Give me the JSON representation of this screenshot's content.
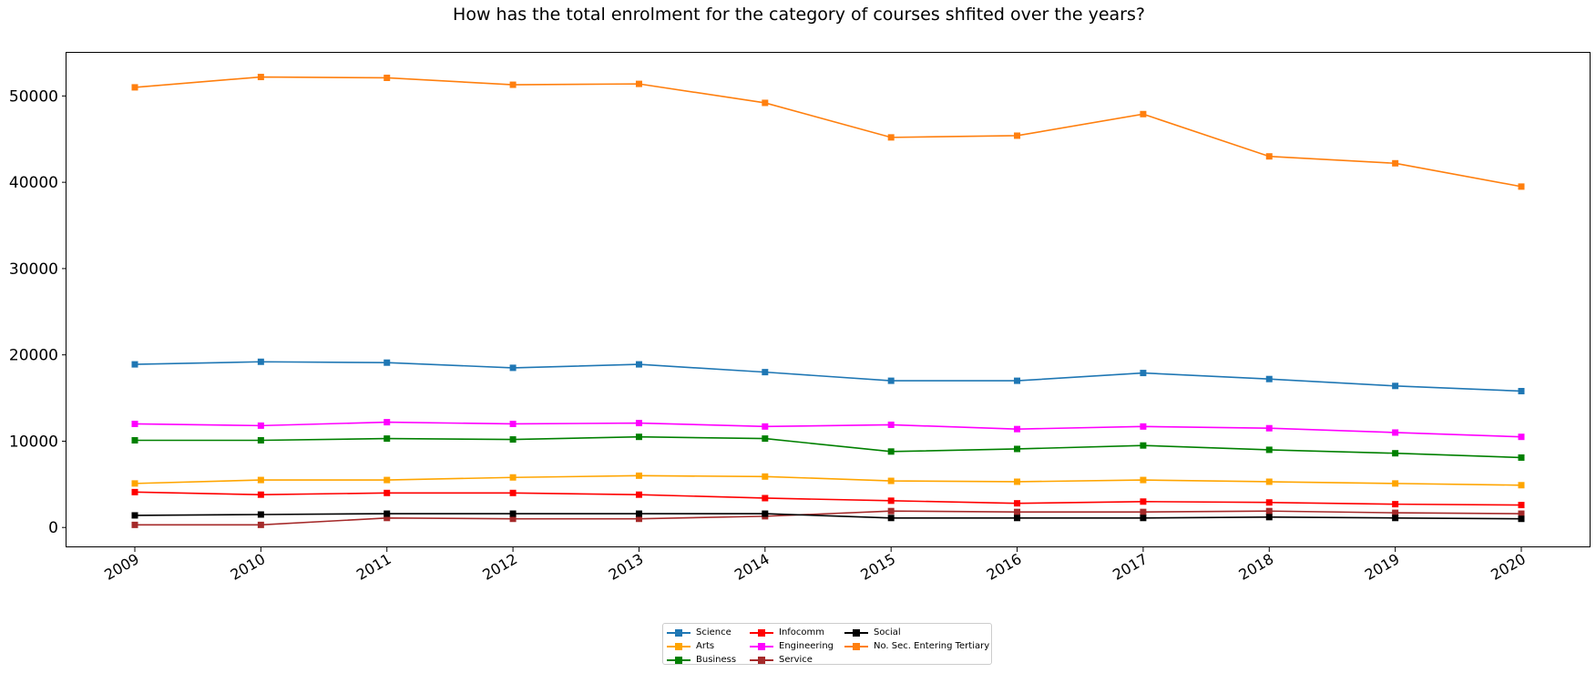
{
  "chart_data": {
    "type": "line",
    "title": "How has the total enrolment for the category of courses shfited over the years?",
    "xlabel": "",
    "ylabel": "",
    "x": [
      "2009",
      "2010",
      "2011",
      "2012",
      "2013",
      "2014",
      "2015",
      "2016",
      "2017",
      "2018",
      "2019",
      "2020"
    ],
    "ylim": [
      -2300,
      55000
    ],
    "yticks": [
      "0",
      "10000",
      "20000",
      "30000",
      "40000",
      "50000"
    ],
    "grid": false,
    "legend_position": "bottom-center",
    "series": [
      {
        "name": "Science",
        "color": "#1f77b4",
        "values": [
          18900,
          19200,
          19100,
          18500,
          18900,
          18000,
          17000,
          17000,
          17900,
          17200,
          16400,
          15800
        ]
      },
      {
        "name": "Arts",
        "color": "#ffa500",
        "values": [
          5100,
          5500,
          5500,
          5800,
          6000,
          5900,
          5400,
          5300,
          5500,
          5300,
          5100,
          4900
        ]
      },
      {
        "name": "Business",
        "color": "#008000",
        "values": [
          10100,
          10100,
          10300,
          10200,
          10500,
          10300,
          8800,
          9100,
          9500,
          9000,
          8600,
          8100
        ]
      },
      {
        "name": "Infocomm",
        "color": "#ff0000",
        "values": [
          4100,
          3800,
          4000,
          4000,
          3800,
          3400,
          3100,
          2800,
          3000,
          2900,
          2700,
          2600
        ]
      },
      {
        "name": "Engineering",
        "color": "#ff00ff",
        "values": [
          12000,
          11800,
          12200,
          12000,
          12100,
          11700,
          11900,
          11400,
          11700,
          11500,
          11000,
          10500
        ]
      },
      {
        "name": "Service",
        "color": "#a52a2a",
        "values": [
          300,
          300,
          1100,
          1000,
          1000,
          1300,
          1900,
          1800,
          1800,
          1900,
          1700,
          1600
        ]
      },
      {
        "name": "Social",
        "color": "#000000",
        "values": [
          1400,
          1500,
          1600,
          1600,
          1600,
          1600,
          1100,
          1100,
          1100,
          1200,
          1100,
          1000
        ]
      },
      {
        "name": "No. Sec. Entering Tertiary",
        "color": "#ff7f0e",
        "values": [
          51000,
          52200,
          52100,
          51300,
          51400,
          49200,
          45200,
          45400,
          47900,
          43000,
          42200,
          39500
        ]
      }
    ]
  }
}
